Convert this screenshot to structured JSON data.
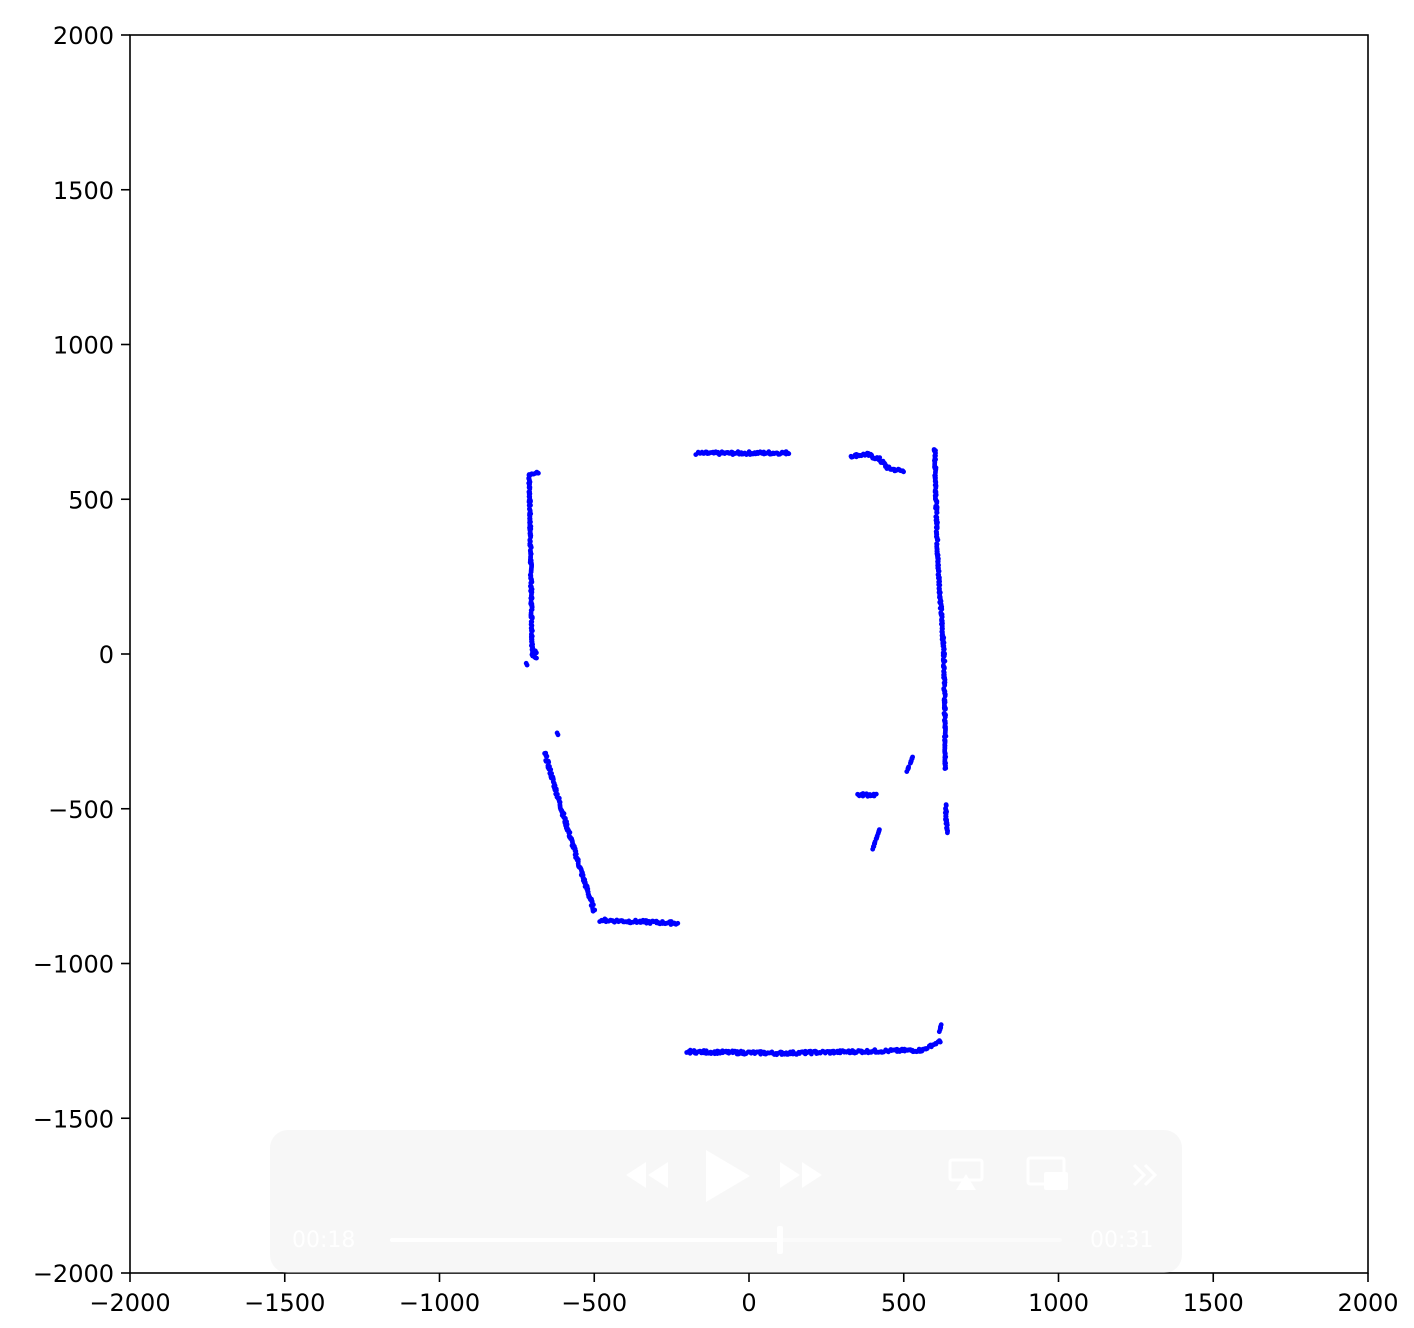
{
  "chart_data": {
    "type": "scatter",
    "title": "",
    "xlabel": "",
    "ylabel": "",
    "xlim": [
      -2000,
      2000
    ],
    "ylim": [
      -2000,
      2000
    ],
    "xticks": [
      -2000,
      -1500,
      -1000,
      -500,
      0,
      500,
      1000,
      1500,
      2000
    ],
    "yticks": [
      -2000,
      -1500,
      -1000,
      -500,
      0,
      500,
      1000,
      1500,
      2000
    ],
    "xtick_labels": [
      "−2000",
      "−1500",
      "−1000",
      "−500",
      "0",
      "500",
      "1000",
      "1500",
      "2000"
    ],
    "ytick_labels": [
      "−2000",
      "−1500",
      "−1000",
      "−500",
      "0",
      "500",
      "1000",
      "1500",
      "2000"
    ],
    "grid": false,
    "marker_color": "#0000ff",
    "series": [
      {
        "segments": [
          [
            [
              -710,
              580
            ],
            [
              -705,
              300
            ],
            [
              -700,
              0
            ]
          ],
          [
            [
              -700,
              0
            ],
            [
              -685,
              -10
            ]
          ],
          [
            [
              -710,
              580
            ],
            [
              -680,
              585
            ]
          ],
          [
            [
              -170,
              648
            ],
            [
              130,
              650
            ]
          ],
          [
            [
              330,
              640
            ],
            [
              380,
              645
            ],
            [
              420,
              630
            ],
            [
              450,
              600
            ],
            [
              500,
              590
            ]
          ],
          [
            [
              600,
              665
            ],
            [
              610,
              300
            ],
            [
              630,
              0
            ],
            [
              635,
              -370
            ]
          ],
          [
            [
              635,
              -490
            ],
            [
              640,
              -580
            ]
          ],
          [
            [
              -660,
              -320
            ],
            [
              -600,
              -520
            ],
            [
              -540,
              -710
            ],
            [
              -500,
              -830
            ]
          ],
          [
            [
              -480,
              -860
            ],
            [
              -230,
              -870
            ]
          ],
          [
            [
              350,
              -455
            ],
            [
              410,
              -455
            ]
          ],
          [
            [
              510,
              -380
            ],
            [
              530,
              -330
            ]
          ],
          [
            [
              400,
              -630
            ],
            [
              420,
              -570
            ]
          ],
          [
            [
              -200,
              -1285
            ],
            [
              100,
              -1290
            ],
            [
              560,
              -1280
            ],
            [
              620,
              -1250
            ]
          ],
          [
            [
              615,
              -1220
            ],
            [
              620,
              -1200
            ]
          ]
        ],
        "points": [
          [
            -620,
            -255
          ],
          [
            -720,
            -30
          ],
          [
            -690,
            10
          ]
        ]
      }
    ]
  },
  "player": {
    "elapsed": "00:18",
    "duration": "00:31",
    "progress": 0.58,
    "icons": [
      "rewind-icon",
      "play-icon",
      "fast-forward-icon",
      "airplay-icon",
      "picture-in-picture-icon",
      "more-controls-icon"
    ]
  }
}
